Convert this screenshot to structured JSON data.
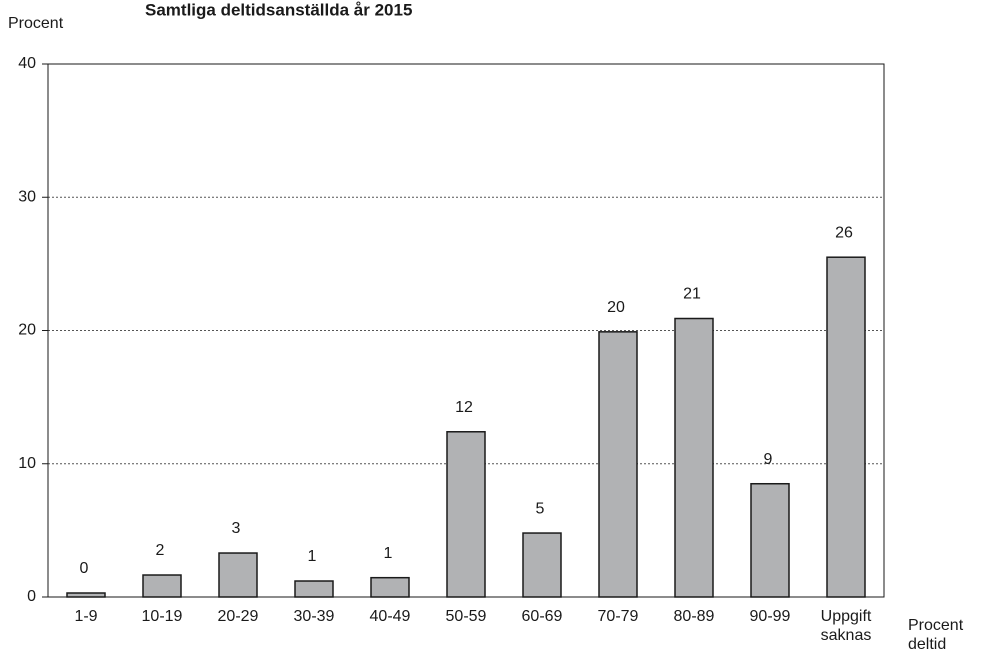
{
  "chart_data": {
    "type": "bar",
    "title": "Samtliga deltidsanställda år 2015",
    "y_label": "Procent",
    "x_label": "Procent deltid",
    "categories": [
      "1-9",
      "10-19",
      "20-29",
      "30-39",
      "40-49",
      "50-59",
      "60-69",
      "70-79",
      "80-89",
      "90-99",
      "Uppgift saknas"
    ],
    "values": [
      0.3,
      1.65,
      3.3,
      1.2,
      1.45,
      12.4,
      4.8,
      19.9,
      20.9,
      8.5,
      25.5
    ],
    "value_labels": [
      "0",
      "2",
      "3",
      "1",
      "1",
      "12",
      "5",
      "20",
      "21",
      "9",
      "26"
    ],
    "color": "#b1b2b4",
    "ylim": [
      0,
      40
    ],
    "yticks": [
      0,
      10,
      20,
      30,
      40
    ],
    "grid": true
  }
}
